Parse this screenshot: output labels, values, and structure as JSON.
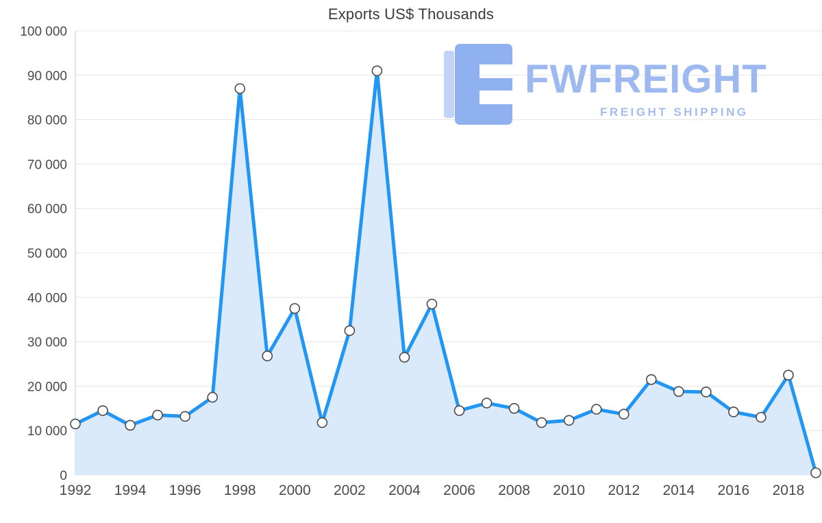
{
  "title": "Exports US$ Thousands",
  "logo": {
    "name": "FWFREIGHT",
    "subtitle": "FREIGHT SHIPPING",
    "color": "#9db9ef"
  },
  "colors": {
    "line": "#2196f3",
    "fill": "#daeafb",
    "grid": "#e5e5e5",
    "axis": "#c9c9c9",
    "marker_fill": "#ffffff",
    "marker_stroke": "#4a4a4a",
    "tick_text": "#4a4a4a",
    "logo_mark_dark": "#8fb1f0",
    "logo_mark_light": "#c3d3f8"
  },
  "chart_data": {
    "type": "area",
    "title": "Exports US$ Thousands",
    "x": [
      1992,
      1993,
      1994,
      1995,
      1996,
      1997,
      1998,
      1999,
      2000,
      2001,
      2002,
      2003,
      2004,
      2005,
      2006,
      2007,
      2008,
      2009,
      2010,
      2011,
      2012,
      2013,
      2014,
      2015,
      2016,
      2017,
      2018,
      2019
    ],
    "values": [
      11500,
      14500,
      11200,
      13500,
      13200,
      17500,
      87000,
      26800,
      37500,
      11800,
      32500,
      91000,
      26500,
      38500,
      14500,
      16200,
      15000,
      11800,
      12300,
      14800,
      13700,
      21500,
      18800,
      18700,
      14200,
      13000,
      22500,
      500
    ],
    "ylim": [
      0,
      100000
    ],
    "y_tick_step": 10000,
    "y_tick_labels": [
      "0",
      "10 000",
      "20 000",
      "30 000",
      "40 000",
      "50 000",
      "60 000",
      "70 000",
      "80 000",
      "90 000",
      "100 000"
    ],
    "x_tick_labels": [
      "1992",
      "1994",
      "1996",
      "1998",
      "2000",
      "2002",
      "2004",
      "2006",
      "2008",
      "2010",
      "2012",
      "2014",
      "2016",
      "2018"
    ],
    "xlabel": "",
    "ylabel": "",
    "grid": "horizontal",
    "legend": "none"
  }
}
